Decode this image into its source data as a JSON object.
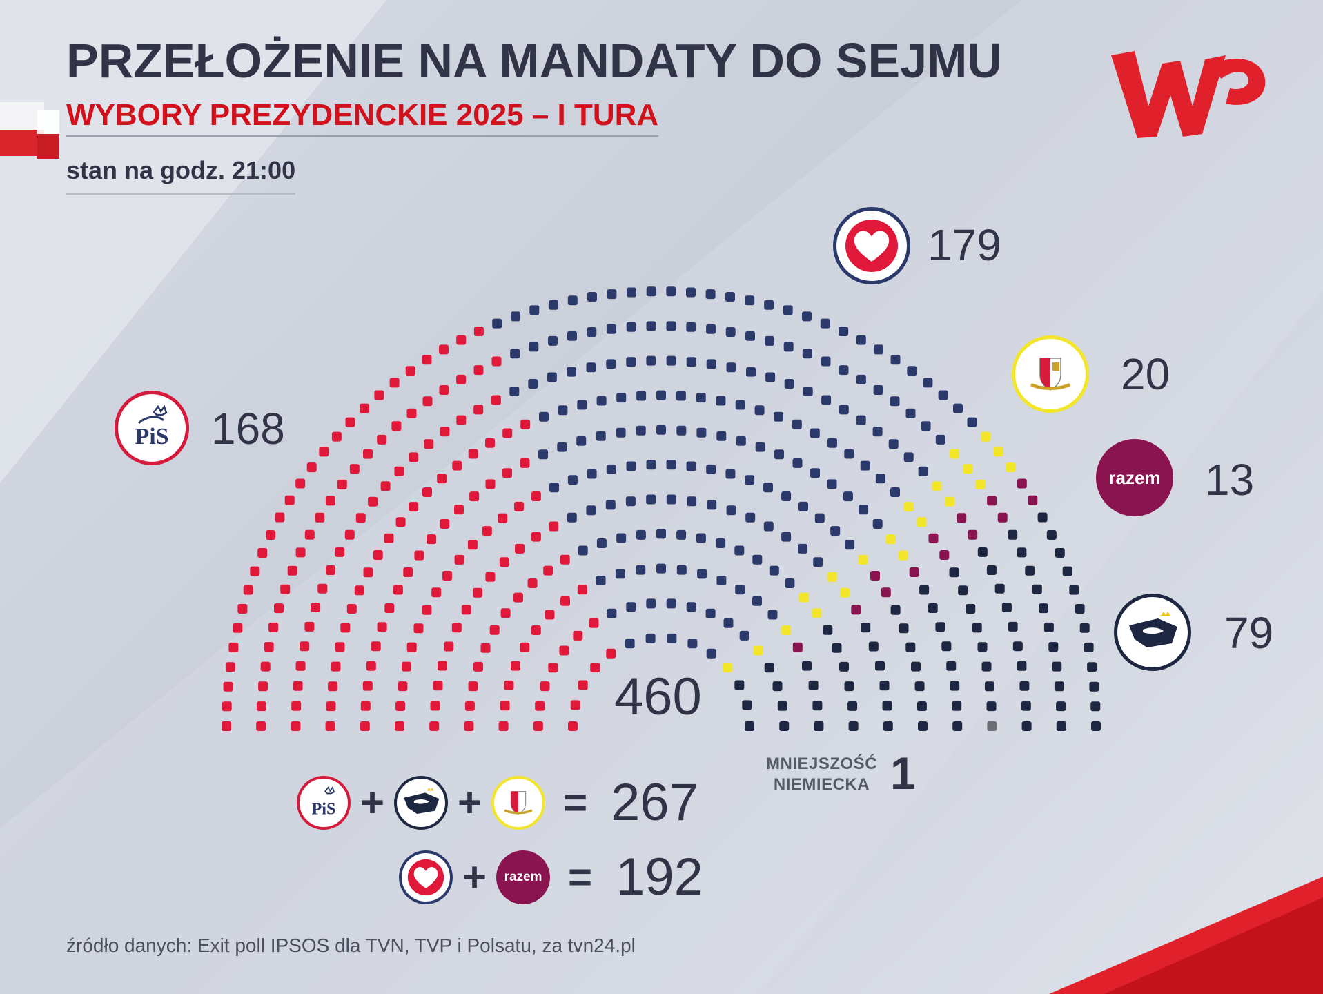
{
  "header": {
    "title": "PRZEŁOŻENIE NA MANDATY DO SEJMU",
    "subtitle": "WYBORY PREZYDENCKIE 2025 – I TURA",
    "timestamp": "stan na godz. 21:00"
  },
  "colors": {
    "pis": "#e0193a",
    "ko": "#2b3a6b",
    "trzecia_droga": "#f2e52a",
    "razem": "#8a1450",
    "konfederacja": "#1d2742",
    "mniejszosc": "#6b6e75",
    "brand_red": "#e0212b",
    "text_dark": "#313347"
  },
  "chart_data": {
    "type": "hemicycle",
    "total": "460",
    "parties": [
      {
        "id": "pis",
        "seats": 168,
        "seats_label": "168",
        "logo_text": "PiS",
        "icon": "pis-logo-icon"
      },
      {
        "id": "ko",
        "seats": 179,
        "seats_label": "179",
        "icon": "heart-logo-icon"
      },
      {
        "id": "trzecia_droga",
        "seats": 20,
        "seats_label": "20",
        "icon": "emblem-logo-icon"
      },
      {
        "id": "razem",
        "seats": 13,
        "seats_label": "13",
        "logo_text": "razem",
        "icon": "razem-logo-icon"
      },
      {
        "id": "konfederacja",
        "seats": 79,
        "seats_label": "79",
        "icon": "eagle-logo-icon"
      },
      {
        "id": "mniejszosc",
        "seats": 1,
        "seats_label": "1",
        "label_line1": "MNIEJSZOŚĆ",
        "label_line2": "NIEMIECKA"
      }
    ],
    "coalitions": [
      {
        "members": [
          "pis",
          "konfederacja",
          "trzecia_droga"
        ],
        "total": "267"
      },
      {
        "members": [
          "ko",
          "razem"
        ],
        "total": "192"
      }
    ],
    "operators": {
      "plus": "+",
      "equals": "="
    }
  },
  "footer": {
    "source": "źródło danych: Exit poll IPSOS dla TVN, TVP i Polsatu, za tvn24.pl"
  }
}
